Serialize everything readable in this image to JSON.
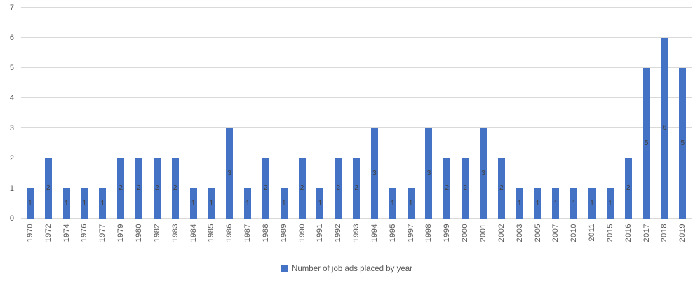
{
  "chart_data": {
    "type": "bar",
    "title": "",
    "xlabel": "",
    "ylabel": "",
    "categories": [
      "1970",
      "1972",
      "1974",
      "1976",
      "1977",
      "1979",
      "1980",
      "1982",
      "1983",
      "1984",
      "1985",
      "1986",
      "1987",
      "1988",
      "1989",
      "1990",
      "1991",
      "1992",
      "1993",
      "1994",
      "1995",
      "1997",
      "1998",
      "1999",
      "2000",
      "2001",
      "2002",
      "2003",
      "2005",
      "2007",
      "2010",
      "2011",
      "2015",
      "2016",
      "2017",
      "2018",
      "2019"
    ],
    "values": [
      1,
      2,
      1,
      1,
      1,
      2,
      2,
      2,
      2,
      1,
      1,
      3,
      1,
      2,
      1,
      2,
      1,
      2,
      2,
      3,
      1,
      1,
      3,
      2,
      2,
      3,
      2,
      1,
      1,
      1,
      1,
      1,
      1,
      2,
      5,
      6,
      5
    ],
    "ylim": [
      0,
      7
    ],
    "yticks": [
      0,
      1,
      2,
      3,
      4,
      5,
      6,
      7
    ],
    "grid": true,
    "data_labels_shown": true,
    "legend": {
      "label": "Number of job ads placed by year",
      "position": "bottom"
    },
    "colors": {
      "bar": "#4472C4",
      "gridline": "#D9D9D9",
      "axis_label": "#595959",
      "data_label": "#404040",
      "background": "#FFFFFF"
    }
  }
}
